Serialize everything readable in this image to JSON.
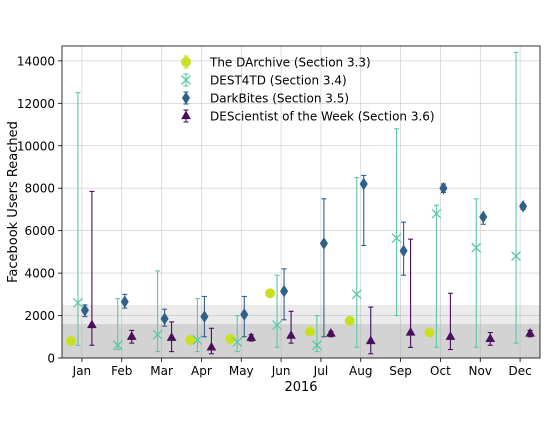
{
  "chart_data": {
    "type": "scatter",
    "title": "",
    "xlabel": "2016",
    "ylabel": "Facebook Users Reached",
    "categories": [
      "Jan",
      "Feb",
      "Mar",
      "Apr",
      "May",
      "Jun",
      "Jul",
      "Aug",
      "Sep",
      "Oct",
      "Nov",
      "Dec"
    ],
    "ylim": [
      0,
      14700
    ],
    "yticks": [
      0,
      2000,
      4000,
      6000,
      8000,
      10000,
      12000,
      14000
    ],
    "ytick_labels": [
      "0",
      "2000",
      "4000",
      "6000",
      "8000",
      "10000",
      "12000",
      "14000"
    ],
    "grid": true,
    "legend_position": "top-center",
    "bands": [
      {
        "from": 0,
        "to": 2500,
        "color": "#ebebeb"
      },
      {
        "from": 0,
        "to": 1600,
        "color": "#d3d3d3"
      }
    ],
    "series": [
      {
        "name": "The DArchive (Section 3.3)",
        "color": "#c8e020",
        "marker": "circle",
        "values": [
          800,
          null,
          null,
          850,
          900,
          3050,
          1250,
          1750,
          null,
          1200,
          null,
          null
        ],
        "err_low": [
          null,
          null,
          null,
          null,
          null,
          null,
          null,
          null,
          null,
          null,
          null,
          null
        ],
        "err_high": [
          null,
          null,
          null,
          null,
          null,
          null,
          null,
          null,
          null,
          null,
          null,
          null
        ]
      },
      {
        "name": "DEST4TD (Section 3.4)",
        "color": "#5cc8a8",
        "marker": "x",
        "values": [
          2600,
          600,
          1100,
          850,
          750,
          1550,
          600,
          3000,
          5650,
          6800,
          5200,
          4800
        ],
        "err_low": [
          600,
          400,
          300,
          300,
          300,
          500,
          300,
          500,
          2000,
          500,
          500,
          700
        ],
        "err_high": [
          12500,
          2800,
          4100,
          2800,
          2000,
          3900,
          2000,
          8500,
          10800,
          7200,
          7500,
          14400
        ]
      },
      {
        "name": "DarkBites (Section 3.5)",
        "color": "#2f5f8a",
        "marker": "diamond",
        "values": [
          2250,
          2650,
          1850,
          1950,
          2050,
          3150,
          5400,
          8200,
          5050,
          8000,
          6650,
          7150
        ],
        "err_low": [
          1950,
          2350,
          1500,
          1000,
          1000,
          1800,
          1000,
          5300,
          3900,
          7800,
          6300,
          7000
        ],
        "err_high": [
          2500,
          3000,
          2300,
          2900,
          2900,
          4200,
          7500,
          8600,
          6400,
          8200,
          6700,
          7200
        ]
      },
      {
        "name": "DEScientist of the Week (Section 3.6)",
        "color": "#4a0e5c",
        "marker": "triangle",
        "values": [
          1550,
          1000,
          950,
          500,
          950,
          1050,
          1150,
          800,
          1200,
          1000,
          900,
          1150
        ],
        "err_low": [
          600,
          700,
          300,
          200,
          800,
          700,
          1000,
          200,
          500,
          400,
          600,
          1000
        ],
        "err_high": [
          7850,
          1300,
          1700,
          1400,
          1100,
          2200,
          1250,
          2400,
          5600,
          3050,
          1200,
          1300
        ]
      }
    ]
  }
}
